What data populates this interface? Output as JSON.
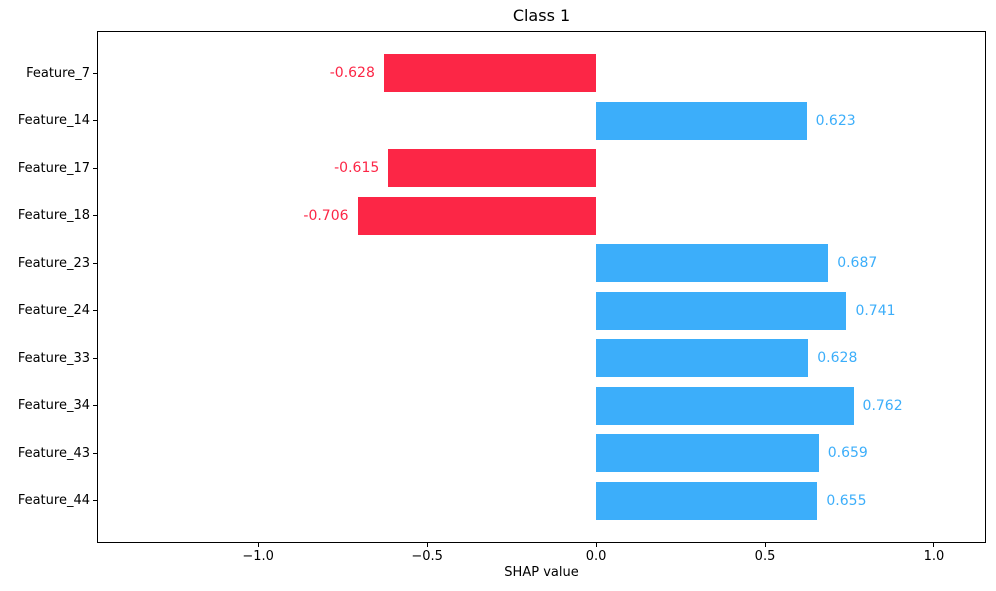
{
  "chart_data": {
    "type": "bar",
    "orientation": "horizontal",
    "title": "Class 1",
    "xlabel": "SHAP value",
    "ylabel": "",
    "categories": [
      "Feature_7",
      "Feature_14",
      "Feature_17",
      "Feature_18",
      "Feature_23",
      "Feature_24",
      "Feature_33",
      "Feature_34",
      "Feature_43",
      "Feature_44"
    ],
    "values": [
      -0.628,
      0.623,
      -0.615,
      -0.706,
      0.687,
      0.741,
      0.628,
      0.762,
      0.659,
      0.655
    ],
    "bar_labels": [
      "-0.628",
      "0.623",
      "-0.615",
      "-0.706",
      "0.687",
      "0.741",
      "0.628",
      "0.762",
      "0.659",
      "0.655"
    ],
    "colors": {
      "positive": "#3CAEFA",
      "negative": "#FC2646"
    },
    "xlim": [
      -1.477,
      1.154
    ],
    "ylim_units": [
      -0.89,
      9.89
    ],
    "bar_thickness_units": 0.8,
    "x_ticks": [
      -1.0,
      -0.5,
      0.0,
      0.5,
      1.0
    ],
    "x_tick_labels": [
      "−1.0",
      "−0.5",
      "0.0",
      "0.5",
      "1.0"
    ],
    "grid": false,
    "legend": false,
    "text_color": "#000000",
    "background": "#ffffff"
  }
}
